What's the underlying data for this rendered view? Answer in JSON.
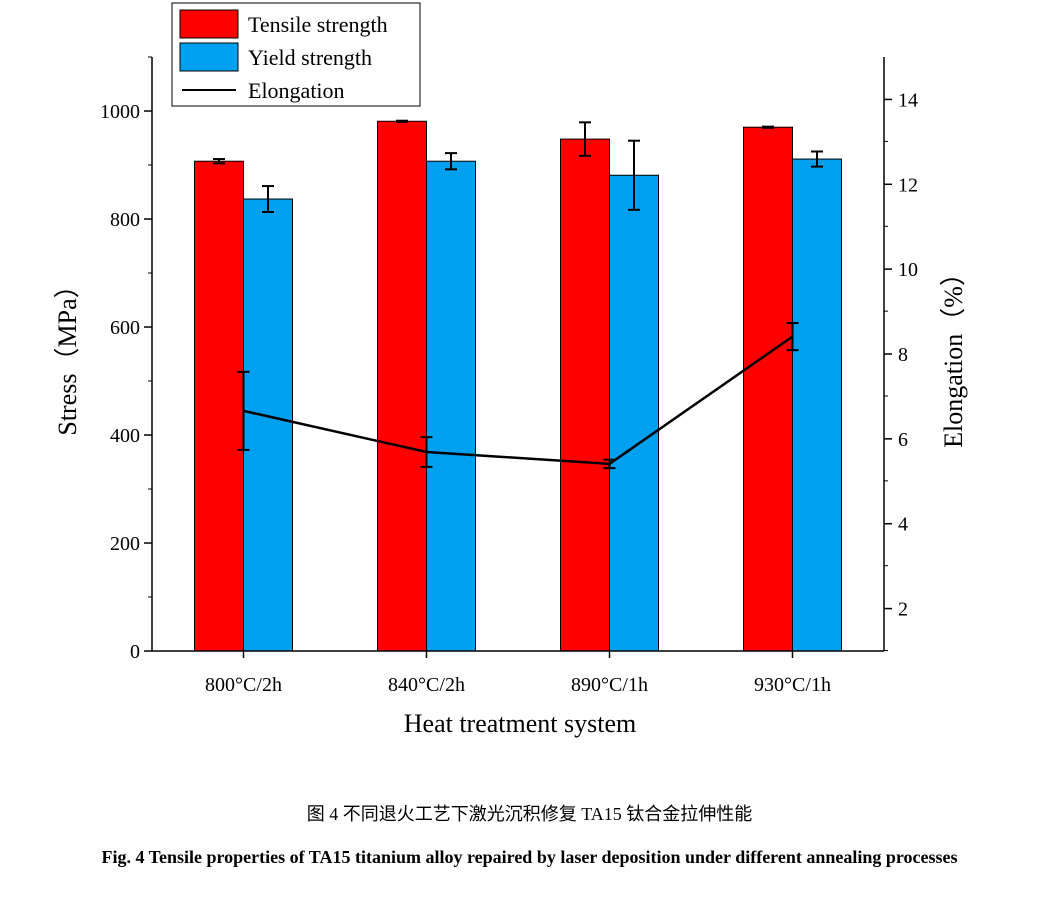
{
  "chart_data": {
    "type": "bar",
    "categories": [
      "800°C/2h",
      "840°C/2h",
      "890°C/1h",
      "930°C/1h"
    ],
    "xlabel": "Heat treatment system",
    "ylabel": "Stress（MPa）",
    "y2label": "Elongation（%）",
    "ylim": [
      0,
      1100
    ],
    "y2lim": [
      1,
      15
    ],
    "yticks": [
      0,
      200,
      400,
      600,
      800,
      1000
    ],
    "y2ticks": [
      2,
      4,
      6,
      8,
      10,
      12,
      14
    ],
    "legend_position": "top-left",
    "series": [
      {
        "name": "Tensile strength",
        "type": "bar",
        "axis": "left",
        "color": "#ff0000",
        "values": [
          907,
          981,
          948,
          970
        ],
        "errors": [
          4,
          1,
          31,
          1
        ]
      },
      {
        "name": "Yield strength",
        "type": "bar",
        "axis": "left",
        "color": "#00a0f0",
        "values": [
          837,
          907,
          881,
          911
        ],
        "errors": [
          24,
          15,
          64,
          14
        ]
      },
      {
        "name": "Elongation",
        "type": "line",
        "axis": "right",
        "color": "#000000",
        "values": [
          6.66,
          5.69,
          5.41,
          8.41
        ],
        "errors": [
          0.92,
          0.35,
          0.1,
          0.32
        ]
      }
    ]
  },
  "caption_cn": "图 4  不同退火工艺下激光沉积修复 TA15 钛合金拉伸性能",
  "caption_en": "Fig. 4 Tensile properties of TA15 titanium alloy repaired by laser deposition under different annealing processes"
}
